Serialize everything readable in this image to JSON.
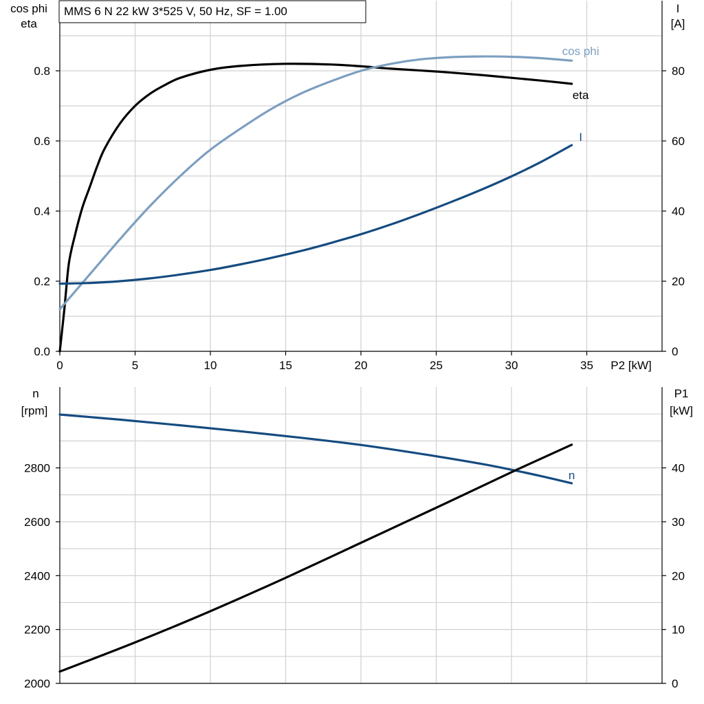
{
  "colors": {
    "eta": "#000000",
    "cos_phi": "#7c9fc0",
    "I": "#154b80",
    "n": "#154b80",
    "P1": "#000000",
    "grid": "#d0d0d0"
  },
  "chart_data": [
    {
      "type": "line",
      "title": "MMS 6 N   22 kW   3*525 V, 50 Hz, SF = 1.00",
      "xlabel": "P2 [kW]",
      "xlim": [
        0,
        40
      ],
      "x_ticks": [
        "0",
        "5",
        "10",
        "15",
        "20",
        "25",
        "30",
        "35"
      ],
      "y_left": {
        "label_lines": [
          "cos phi",
          "eta"
        ],
        "ylim": [
          0,
          1.0
        ],
        "ticks": [
          "0.0",
          "0.2",
          "0.4",
          "0.6",
          "0.8"
        ]
      },
      "y_right": {
        "label_lines": [
          "I",
          "[A]"
        ],
        "ylim": [
          0,
          100
        ],
        "ticks": [
          "0",
          "20",
          "40",
          "60",
          "80"
        ]
      },
      "grid": true,
      "series": [
        {
          "name": "eta",
          "axis": "left",
          "x": [
            0,
            0.3,
            0.6,
            1.0,
            1.5,
            2.0,
            2.5,
            3,
            4,
            5,
            6,
            7,
            8,
            10,
            12,
            15,
            18,
            20,
            22,
            25,
            28,
            30,
            32,
            34
          ],
          "y": [
            0.0,
            0.12,
            0.25,
            0.33,
            0.41,
            0.47,
            0.53,
            0.58,
            0.65,
            0.7,
            0.735,
            0.76,
            0.78,
            0.803,
            0.814,
            0.82,
            0.818,
            0.813,
            0.806,
            0.798,
            0.788,
            0.78,
            0.772,
            0.763
          ]
        },
        {
          "name": "cos phi",
          "axis": "left",
          "x": [
            0,
            2,
            4,
            6,
            8,
            10,
            12,
            14,
            16,
            18,
            20,
            22,
            24,
            26,
            28,
            30,
            32,
            34
          ],
          "y": [
            0.12,
            0.22,
            0.32,
            0.415,
            0.5,
            0.575,
            0.635,
            0.69,
            0.735,
            0.77,
            0.8,
            0.82,
            0.833,
            0.839,
            0.841,
            0.84,
            0.836,
            0.829
          ]
        },
        {
          "name": "I",
          "axis": "right",
          "x": [
            0,
            2,
            4,
            6,
            8,
            10,
            12,
            14,
            16,
            18,
            20,
            22,
            24,
            26,
            28,
            30,
            32,
            34
          ],
          "y": [
            19.3,
            19.5,
            20.0,
            20.8,
            21.9,
            23.2,
            24.8,
            26.6,
            28.6,
            30.9,
            33.4,
            36.2,
            39.3,
            42.6,
            46.1,
            49.9,
            54.1,
            58.8
          ]
        }
      ]
    },
    {
      "type": "line",
      "xlim": [
        0,
        40
      ],
      "y_left": {
        "label_lines": [
          "n",
          "[rpm]"
        ],
        "ylim": [
          2000,
          3100
        ],
        "ticks": [
          "2000",
          "2200",
          "2400",
          "2600",
          "2800"
        ]
      },
      "y_right": {
        "label_lines": [
          "P1",
          "[kW]"
        ],
        "ylim": [
          0,
          55
        ],
        "ticks": [
          "0",
          "10",
          "20",
          "30",
          "40"
        ]
      },
      "grid": true,
      "series": [
        {
          "name": "n",
          "axis": "left",
          "x": [
            0,
            4,
            8,
            12,
            16,
            20,
            24,
            28,
            30,
            32,
            34
          ],
          "y": [
            2998,
            2979,
            2958,
            2936,
            2912,
            2885,
            2852,
            2815,
            2793,
            2769,
            2743
          ]
        },
        {
          "name": "P1",
          "axis": "right",
          "x": [
            0,
            5,
            10,
            15,
            20,
            25,
            30,
            34
          ],
          "y": [
            2.2,
            7.6,
            13.4,
            19.6,
            26.1,
            32.6,
            39.2,
            44.3
          ]
        }
      ]
    }
  ]
}
